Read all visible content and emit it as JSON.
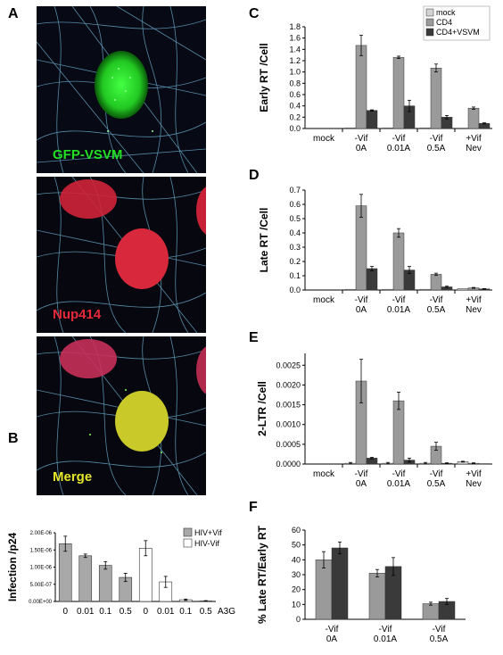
{
  "panels": {
    "A": "A",
    "B": "B",
    "C": "C",
    "D": "D",
    "E": "E",
    "F": "F"
  },
  "microscopy": [
    {
      "label": "GFP-VSVM",
      "color": "#22e022"
    },
    {
      "label": "Nup414",
      "color": "#e8293a"
    },
    {
      "label": "Merge",
      "color": "#e6e62a"
    }
  ],
  "colors": {
    "mock": "#d2d2d2",
    "cd4": "#9a9a9a",
    "cd4vsvm": "#3a3a3a",
    "hiv_vif": "#a8a8a8",
    "hiv_novif": "#ffffff",
    "cytoskeleton": "#6fb7d8"
  },
  "chart_data": [
    {
      "id": "C",
      "type": "bar",
      "ylabel": "Early RT /Cell",
      "yticks": [
        "0.0",
        "0.2",
        "0.4",
        "0.6",
        "0.8",
        "1.0",
        "1.2",
        "1.4",
        "1.6",
        "1.8"
      ],
      "ylim": [
        0,
        1.8
      ],
      "categories": [
        [
          "mock",
          ""
        ],
        [
          "-Vif",
          "0A"
        ],
        [
          "-Vif",
          "0.01A"
        ],
        [
          "-Vif",
          "0.5A"
        ],
        [
          "+Vif",
          "Nev"
        ]
      ],
      "series": [
        {
          "name": "mock",
          "values": [
            0,
            0.01,
            0.01,
            0.01,
            0
          ],
          "errors": [
            0,
            0,
            0,
            0,
            0
          ]
        },
        {
          "name": "CD4",
          "values": [
            0,
            1.47,
            1.26,
            1.07,
            0.36
          ],
          "errors": [
            0,
            0.18,
            0.02,
            0.07,
            0.02
          ]
        },
        {
          "name": "CD4+VSVM",
          "values": [
            0,
            0.32,
            0.4,
            0.2,
            0.09
          ],
          "errors": [
            0,
            0.01,
            0.1,
            0.03,
            0.01
          ]
        }
      ],
      "legend": [
        "mock",
        "CD4",
        "CD4+VSVM"
      ]
    },
    {
      "id": "D",
      "type": "bar",
      "ylabel": "Late RT /Cell",
      "yticks": [
        "0.0",
        "0.1",
        "0.2",
        "0.3",
        "0.4",
        "0.5",
        "0.6",
        "0.7"
      ],
      "ylim": [
        0,
        0.7
      ],
      "categories": [
        [
          "mock",
          ""
        ],
        [
          "-Vif",
          "0A"
        ],
        [
          "-Vif",
          "0.01A"
        ],
        [
          "-Vif",
          "0.5A"
        ],
        [
          "+Vif",
          "Nev"
        ]
      ],
      "series": [
        {
          "name": "mock",
          "values": [
            0,
            0.005,
            0.005,
            0.005,
            0.01
          ],
          "errors": [
            0,
            0,
            0,
            0,
            0
          ]
        },
        {
          "name": "CD4",
          "values": [
            0,
            0.59,
            0.4,
            0.11,
            0.015
          ],
          "errors": [
            0,
            0.08,
            0.03,
            0.008,
            0.003
          ]
        },
        {
          "name": "CD4+VSVM",
          "values": [
            0,
            0.15,
            0.14,
            0.022,
            0.008
          ],
          "errors": [
            0,
            0.015,
            0.025,
            0.005,
            0.002
          ]
        }
      ]
    },
    {
      "id": "E",
      "type": "bar",
      "ylabel": "2-LTR /Cell",
      "yticks": [
        "0.0000",
        "0.0005",
        "0.0010",
        "0.0015",
        "0.0020",
        "0.0025"
      ],
      "ylim": [
        0,
        0.0028
      ],
      "categories": [
        [
          "mock",
          ""
        ],
        [
          "-Vif",
          "0A"
        ],
        [
          "-Vif",
          "0.01A"
        ],
        [
          "-Vif",
          "0.5A"
        ],
        [
          "+Vif",
          "Nev"
        ]
      ],
      "series": [
        {
          "name": "mock",
          "values": [
            0,
            2e-05,
            2e-05,
            2e-05,
            6e-05
          ],
          "errors": [
            0,
            2e-05,
            2e-05,
            2e-05,
            1e-05
          ]
        },
        {
          "name": "CD4",
          "values": [
            0,
            0.0021,
            0.0016,
            0.00045,
            2e-05
          ],
          "errors": [
            0,
            0.00055,
            0.00022,
            0.0001,
            1e-05
          ]
        },
        {
          "name": "CD4+VSVM",
          "values": [
            0,
            0.00015,
            0.0001,
            2e-05,
            1e-05
          ],
          "errors": [
            0,
            2e-05,
            5e-05,
            1e-05,
            0
          ]
        }
      ]
    },
    {
      "id": "F",
      "type": "bar",
      "ylabel": "% Late RT/Early RT",
      "yticks": [
        "0",
        "10",
        "20",
        "30",
        "40",
        "50",
        "60"
      ],
      "ylim": [
        0,
        60
      ],
      "categories": [
        [
          "-Vif",
          "0A"
        ],
        [
          "-Vif",
          "0.01A"
        ],
        [
          "-Vif",
          "0.5A"
        ]
      ],
      "series": [
        {
          "name": "CD4",
          "values": [
            40,
            31,
            10.5
          ],
          "errors": [
            5.5,
            2.5,
            1.0
          ]
        },
        {
          "name": "CD4+VSVM",
          "values": [
            48,
            35.5,
            12
          ],
          "errors": [
            4,
            6,
            2
          ]
        }
      ]
    },
    {
      "id": "B",
      "type": "bar",
      "ylabel": "Infection /p24",
      "yticks": [
        "0.00E+00",
        "5.00E-07",
        "1.00E-06",
        "1.50E-06",
        "2.00E-06"
      ],
      "ylim": [
        0,
        2e-06
      ],
      "categories": [
        "0",
        "0.01",
        "0.1",
        "0.5",
        "0",
        "0.01",
        "0.1",
        "0.5"
      ],
      "xsuffix": "A3G",
      "values": [
        1.68e-06,
        1.33e-06,
        1.05e-06,
        7e-07,
        1.55e-06,
        5.7e-07,
        5e-08,
        1.5e-08
      ],
      "errors": [
        2.2e-07,
        5e-08,
        1.1e-07,
        1.2e-07,
        2.2e-07,
        1.6e-07,
        2e-08,
        1e-08
      ],
      "group": [
        "HIV+Vif",
        "HIV+Vif",
        "HIV+Vif",
        "HIV+Vif",
        "HIV-Vif",
        "HIV-Vif",
        "HIV-Vif",
        "HIV-Vif"
      ],
      "legend": [
        "HIV+Vif",
        "HIV-Vif"
      ]
    }
  ]
}
